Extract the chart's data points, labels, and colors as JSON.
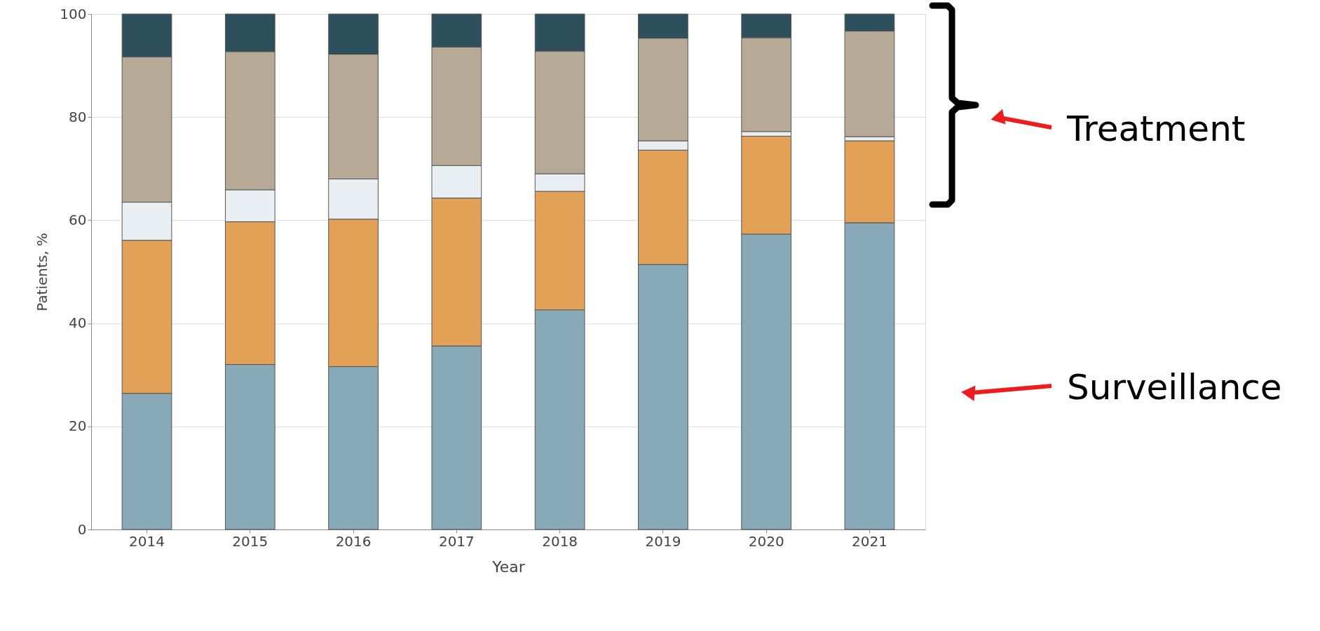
{
  "chart_data": {
    "type": "bar",
    "stacked": true,
    "xlabel": "Year",
    "ylabel": "Patients, %",
    "categories": [
      "2014",
      "2015",
      "2016",
      "2017",
      "2018",
      "2019",
      "2020",
      "2021"
    ],
    "series": [
      {
        "color": "#87a9b8",
        "values": [
          26.4,
          32.0,
          31.6,
          35.6,
          42.6,
          51.4,
          57.3,
          59.5
        ]
      },
      {
        "color": "#e3a157",
        "values": [
          29.7,
          27.7,
          28.6,
          28.7,
          23.0,
          22.2,
          19.0,
          15.9
        ]
      },
      {
        "color": "#e8eef2",
        "values": [
          7.4,
          6.2,
          7.8,
          6.3,
          3.4,
          1.8,
          0.9,
          0.8
        ]
      },
      {
        "color": "#b6aa96",
        "values": [
          28.2,
          26.8,
          24.2,
          23.0,
          23.8,
          19.9,
          18.2,
          20.5
        ]
      },
      {
        "color": "#2e4f5c",
        "values": [
          8.3,
          7.3,
          7.8,
          6.4,
          7.2,
          4.7,
          4.6,
          3.3
        ]
      }
    ],
    "ylim": [
      0,
      100
    ],
    "yticks": [
      0,
      20,
      40,
      60,
      80,
      100
    ],
    "grid": "y",
    "annotations": [
      "Treatment",
      "Surveillance"
    ]
  }
}
